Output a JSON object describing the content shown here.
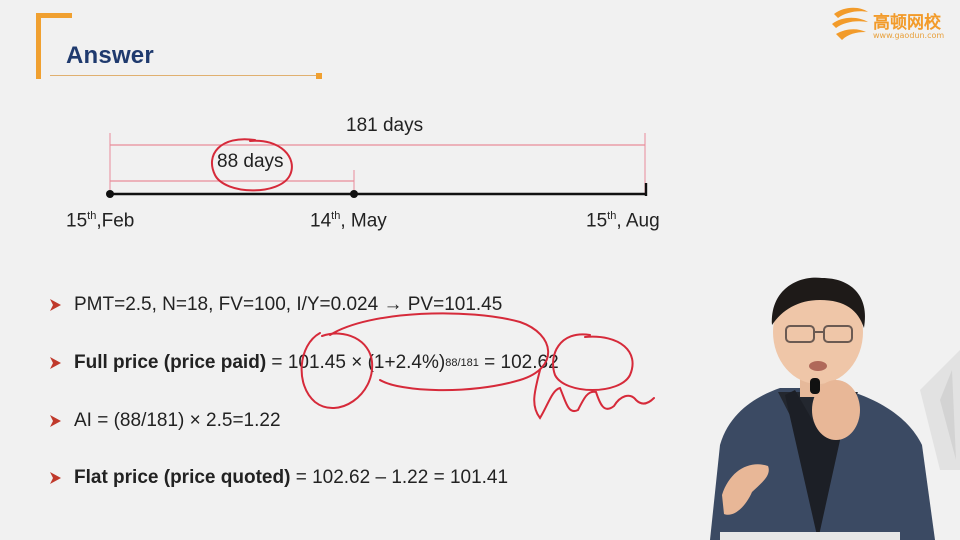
{
  "slide": {
    "title": "Answer",
    "logo": {
      "name": "高顿网校",
      "url": "www.gaodun.com",
      "icon": "gaodun-logo-icon"
    }
  },
  "timeline": {
    "span_total": "181 days",
    "span_partial": "88 days",
    "points": [
      {
        "day": "15",
        "suffix": "th",
        "month": ",Feb"
      },
      {
        "day": "14",
        "suffix": "th",
        "month": ", May"
      },
      {
        "day": "15",
        "suffix": "th",
        "month": ", Aug"
      }
    ]
  },
  "bullets": {
    "b1": {
      "text": "PMT=2.5, N=18, FV=100, I/Y=0.024 ",
      "arrow": "→",
      "result": " PV=101.45"
    },
    "b2": {
      "label": "Full price (price paid)",
      "eq": " = ",
      "pv": "101.45",
      "times": " × (1+2.4%)",
      "exp": "88/181",
      "eq2": " = ",
      "result": "102.62"
    },
    "b3": {
      "text": "AI = (88/181) × 2.5=1.22"
    },
    "b4": {
      "label": "Flat price (price quoted)",
      "text": " = 102.62 – 1.22 = 101.41"
    }
  },
  "colors": {
    "accent_orange": "#f0a030",
    "title_blue": "#1f3a6e",
    "bullet_red": "#c0392b",
    "ink_red": "#d62a3a",
    "guide_pink": "#e98c9a"
  }
}
